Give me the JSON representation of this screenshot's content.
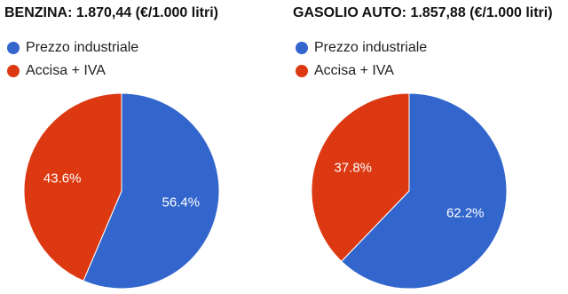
{
  "chart_data": [
    {
      "type": "pie",
      "title": "BENZINA: 1.870,44 (€/1.000 litri)",
      "categories": [
        "Prezzo industriale",
        "Accisa + IVA"
      ],
      "values": [
        56.4,
        43.6
      ],
      "value_labels": [
        "56.4%",
        "43.6%"
      ],
      "colors": [
        "#3366cc",
        "#dc3912"
      ]
    },
    {
      "type": "pie",
      "title": "GASOLIO AUTO: 1.857,88 (€/1.000 litri)",
      "categories": [
        "Prezzo industriale",
        "Accisa + IVA"
      ],
      "values": [
        62.2,
        37.8
      ],
      "value_labels": [
        "62.2%",
        "37.8%"
      ],
      "colors": [
        "#3366cc",
        "#dc3912"
      ]
    }
  ]
}
